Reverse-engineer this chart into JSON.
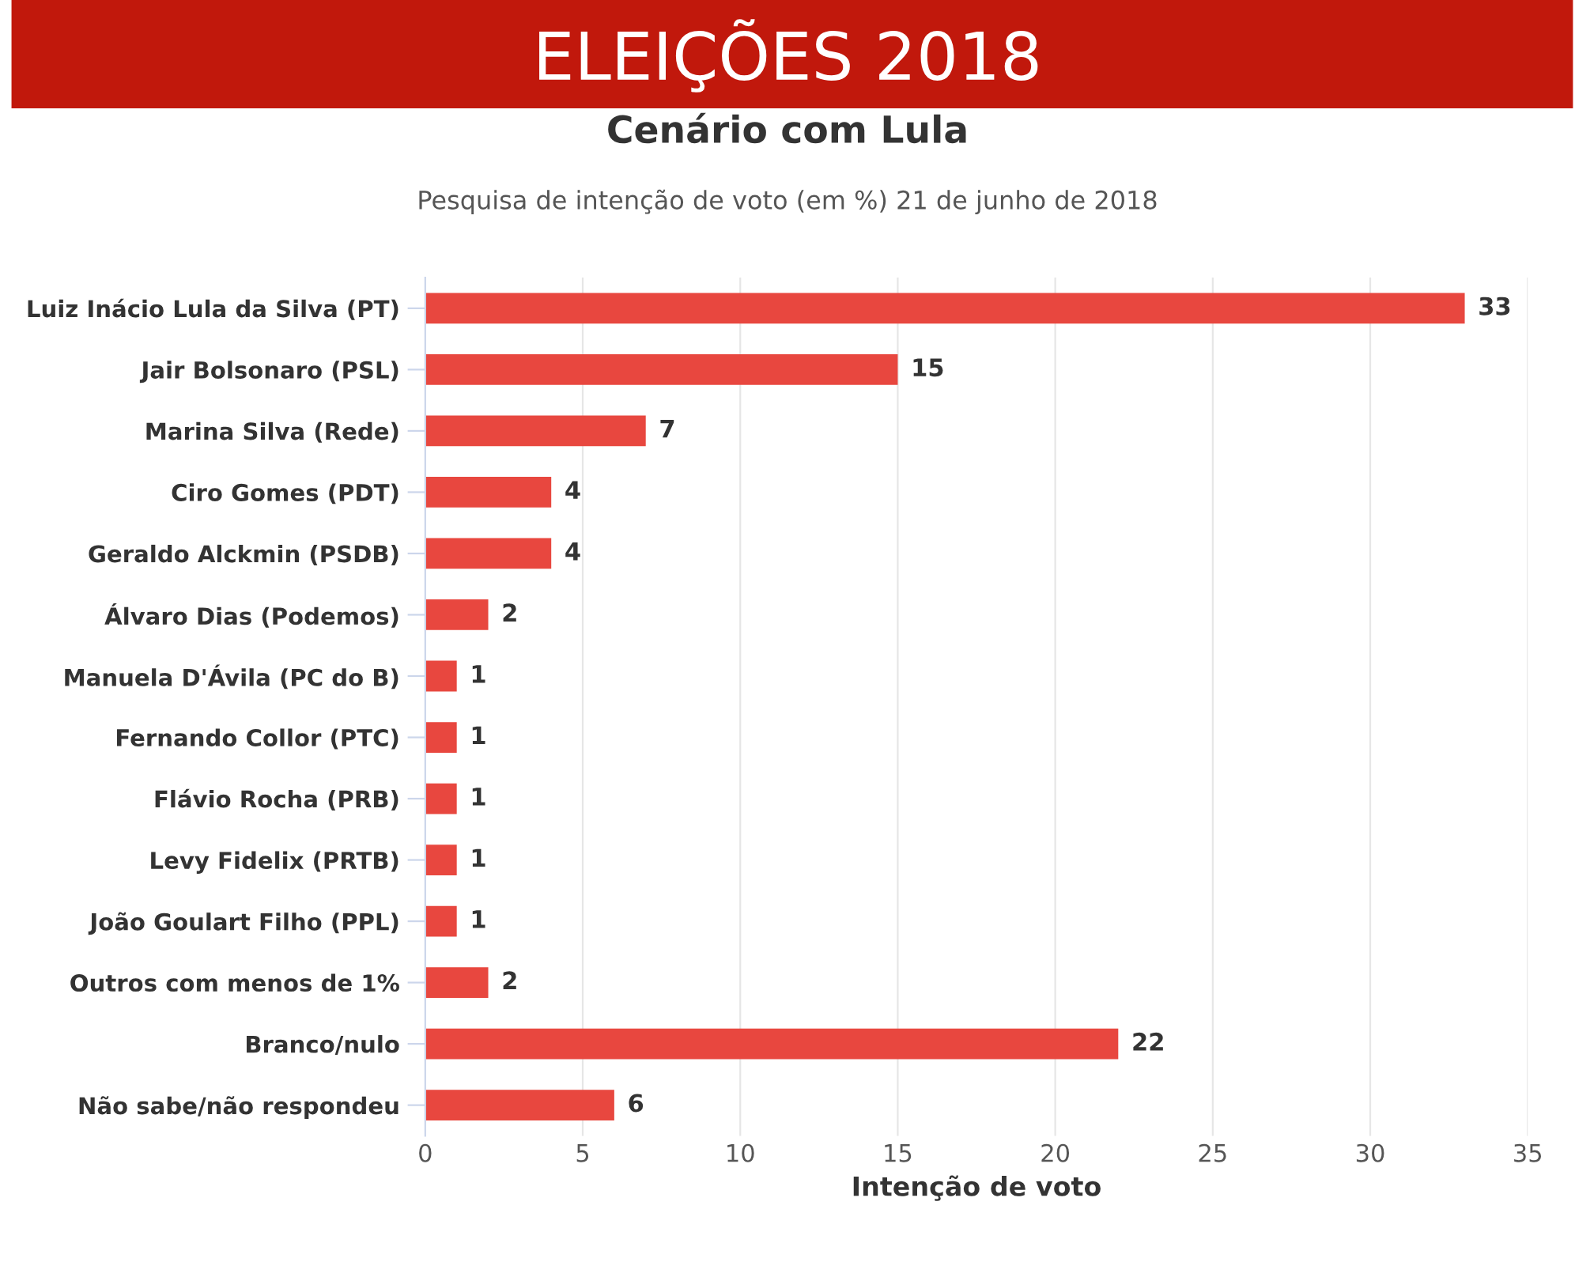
{
  "chart_data": {
    "type": "bar",
    "orientation": "horizontal",
    "title": "Cenário com Lula",
    "subtitle": "Pesquisa de intenção de voto (em %) 21 de junho de 2018",
    "xlabel": "Intenção de voto",
    "annotations": [
      "ELEIÇÕES 2018"
    ],
    "categories": [
      "Luiz Inácio Lula da Silva (PT)",
      "Jair Bolsonaro (PSL)",
      "Marina Silva (Rede)",
      "Ciro Gomes (PDT)",
      "Geraldo Alckmin (PSDB)",
      "Álvaro Dias (Podemos)",
      "Manuela D'Ávila (PC do B)",
      "Fernando Collor (PTC)",
      "Flávio Rocha (PRB)",
      "Levy Fidelix (PRTB)",
      "João Goulart Filho (PPL)",
      "Outros com menos de 1%",
      "Branco/nulo",
      "Não sabe/não respondeu"
    ],
    "values": [
      33,
      15,
      7,
      4,
      4,
      2,
      1,
      1,
      1,
      1,
      1,
      2,
      22,
      6
    ],
    "color": "#e8473f",
    "data_labels": true,
    "xlim": [
      0,
      35
    ],
    "xticks": [
      0,
      5,
      10,
      15,
      20,
      25,
      30,
      35
    ],
    "grid": "x",
    "legend": false
  }
}
